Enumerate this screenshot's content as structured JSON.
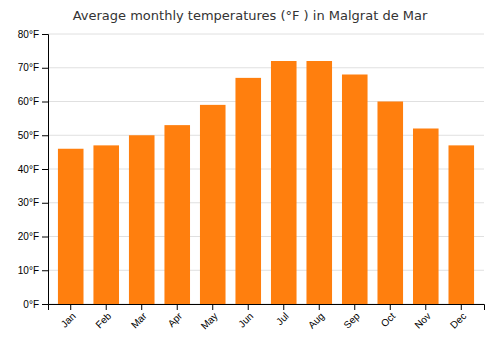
{
  "chart_data": {
    "type": "bar",
    "title": "Average monthly temperatures (°F ) in Malgrat de Mar",
    "categories": [
      "Jan",
      "Feb",
      "Mar",
      "Apr",
      "May",
      "Jun",
      "Jul",
      "Aug",
      "Sep",
      "Oct",
      "Nov",
      "Dec"
    ],
    "values": [
      46,
      47,
      50,
      53,
      59,
      67,
      72,
      72,
      68,
      60,
      52,
      47
    ],
    "ylim": [
      0,
      80
    ],
    "yticks": [
      {
        "value": 0,
        "label": "0°F"
      },
      {
        "value": 10,
        "label": "10°F"
      },
      {
        "value": 20,
        "label": "20°F"
      },
      {
        "value": 30,
        "label": "30°F"
      },
      {
        "value": 40,
        "label": "40°F"
      },
      {
        "value": 50,
        "label": "50°F"
      },
      {
        "value": 60,
        "label": "60°F"
      },
      {
        "value": 70,
        "label": "70°F"
      },
      {
        "value": 80,
        "label": "80°F"
      }
    ],
    "grid": true
  }
}
